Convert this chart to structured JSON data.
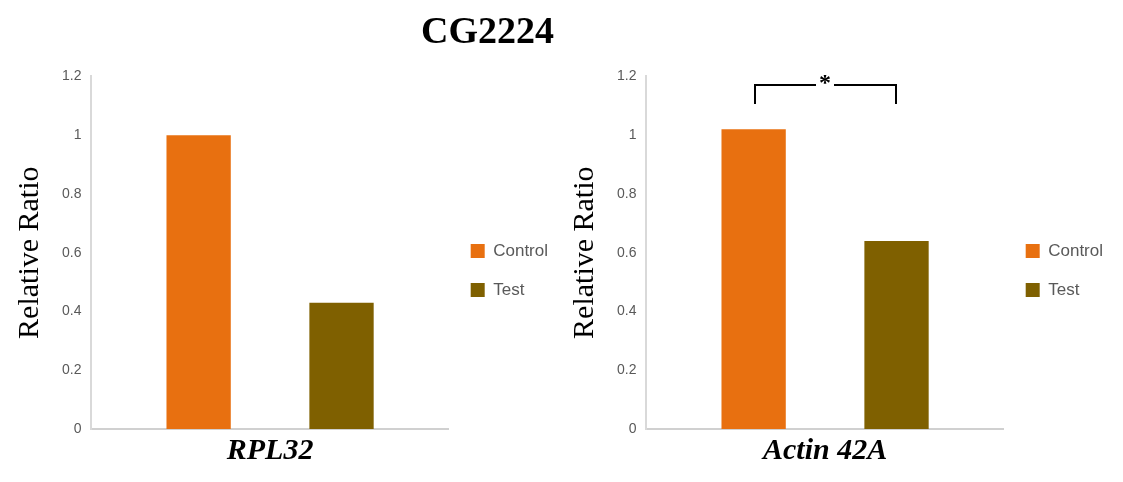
{
  "chart_data": [
    {
      "type": "bar",
      "title": "CG2224",
      "xlabel": "RPL32",
      "ylabel": "Relative Ratio",
      "categories": [
        null
      ],
      "series": [
        {
          "name": "Control",
          "color": "#e87010",
          "values": [
            1.0
          ]
        },
        {
          "name": "Test",
          "color": "#7f6000",
          "values": [
            0.43
          ]
        }
      ],
      "ylim": [
        0,
        1.2
      ],
      "yticks": [
        0,
        0.2,
        0.4,
        0.6,
        0.8,
        1,
        1.2
      ],
      "grid": false,
      "legend": "right",
      "tick_labels": "y"
    },
    {
      "type": "bar",
      "xlabel": "Actin 42A",
      "ylabel": "Relative Ratio",
      "categories": [
        null
      ],
      "series": [
        {
          "name": "Control",
          "color": "#e87010",
          "values": [
            1.02
          ]
        },
        {
          "name": "Test",
          "color": "#7f6000",
          "values": [
            0.64
          ]
        }
      ],
      "ylim": [
        0,
        1.2
      ],
      "yticks": [
        0,
        0.2,
        0.4,
        0.6,
        0.8,
        1,
        1.2
      ],
      "grid": false,
      "legend": "right",
      "tick_labels": "y",
      "annotations": [
        "*"
      ]
    }
  ]
}
